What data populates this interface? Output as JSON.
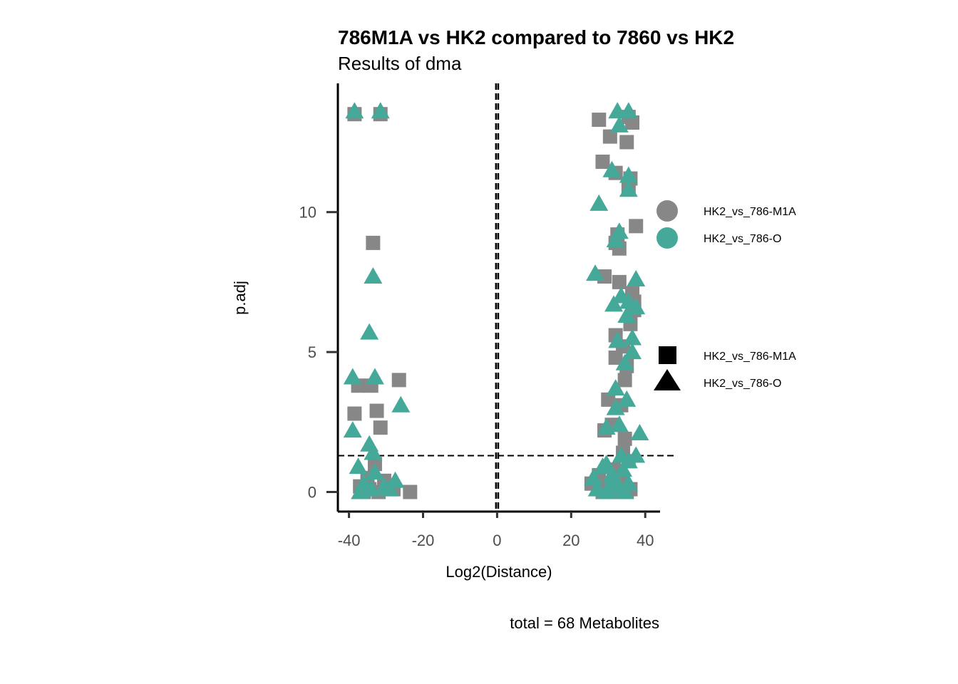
{
  "chart_data": {
    "type": "scatter",
    "title": "786M1A vs HK2 compared to 7860 vs HK2",
    "subtitle": "Results of dma",
    "xlabel": "Log2(Distance)",
    "ylabel": "p.adj",
    "caption": "total = 68 Metabolites",
    "xlim": [
      -43,
      44
    ],
    "ylim": [
      -0.7,
      14.6
    ],
    "x_ticks": [
      -40,
      -20,
      0,
      20,
      40
    ],
    "y_ticks": [
      0,
      5,
      10
    ],
    "x_tick_labels": [
      "-40",
      "-20",
      "0",
      "20",
      "40"
    ],
    "y_tick_labels": [
      "0",
      "5",
      "10"
    ],
    "reference_lines": {
      "vertical": [
        -0.3,
        0.3
      ],
      "horizontal": [
        1.3
      ]
    },
    "colors": {
      "HK2_vs_786-M1A": "#878787",
      "HK2_vs_786-O": "#45A99A"
    },
    "legend_color": {
      "items": [
        {
          "label": "HK2_vs_786-M1A",
          "color": "#878787"
        },
        {
          "label": "HK2_vs_786-O",
          "color": "#45A99A"
        }
      ]
    },
    "legend_shape": {
      "items": [
        {
          "label": "HK2_vs_786-M1A",
          "shape": "square"
        },
        {
          "label": "HK2_vs_786-O",
          "shape": "triangle"
        }
      ]
    },
    "series": [
      {
        "name": "HK2_vs_786-M1A",
        "shape": "square",
        "color": "#878787",
        "points": [
          [
            -38.5,
            13.5
          ],
          [
            -31.5,
            13.5
          ],
          [
            -33.5,
            8.9
          ],
          [
            -37.5,
            3.8
          ],
          [
            -34.0,
            3.8
          ],
          [
            -26.5,
            4.0
          ],
          [
            -38.5,
            2.8
          ],
          [
            -32.5,
            2.9
          ],
          [
            -31.5,
            2.3
          ],
          [
            -33.0,
            1.0
          ],
          [
            -35.0,
            0.5
          ],
          [
            -30.5,
            0.4
          ],
          [
            -37.0,
            0.2
          ],
          [
            -34.5,
            0.1
          ],
          [
            -32.0,
            0.0
          ],
          [
            -28.0,
            0.1
          ],
          [
            -23.5,
            0.0
          ],
          [
            -36.0,
            0.0
          ],
          [
            27.5,
            13.3
          ],
          [
            35.5,
            13.4
          ],
          [
            36.5,
            13.2
          ],
          [
            30.5,
            12.7
          ],
          [
            35.0,
            12.5
          ],
          [
            28.5,
            11.8
          ],
          [
            32.0,
            11.4
          ],
          [
            36.0,
            11.2
          ],
          [
            35.5,
            10.9
          ],
          [
            32.5,
            9.2
          ],
          [
            37.5,
            9.5
          ],
          [
            32.0,
            8.9
          ],
          [
            33.0,
            8.7
          ],
          [
            29.0,
            7.7
          ],
          [
            33.0,
            7.5
          ],
          [
            36.5,
            7.1
          ],
          [
            37.0,
            6.8
          ],
          [
            37.0,
            6.5
          ],
          [
            36.0,
            6.0
          ],
          [
            32.0,
            5.6
          ],
          [
            34.0,
            5.2
          ],
          [
            32.0,
            4.8
          ],
          [
            35.0,
            4.5
          ],
          [
            34.5,
            4.0
          ],
          [
            30.0,
            3.3
          ],
          [
            33.5,
            3.1
          ],
          [
            29.0,
            2.2
          ],
          [
            31.0,
            2.4
          ],
          [
            34.5,
            1.9
          ],
          [
            34.0,
            1.4
          ],
          [
            35.5,
            1.1
          ],
          [
            31.5,
            0.8
          ],
          [
            27.5,
            0.6
          ],
          [
            25.5,
            0.3
          ],
          [
            30.0,
            0.2
          ],
          [
            32.0,
            0.0
          ],
          [
            35.0,
            0.0
          ],
          [
            28.5,
            0.0
          ],
          [
            30.5,
            0.1
          ],
          [
            33.5,
            0.3
          ],
          [
            36.0,
            0.1
          ]
        ]
      },
      {
        "name": "HK2_vs_786-O",
        "shape": "triangle",
        "color": "#45A99A",
        "points": [
          [
            -38.5,
            13.6
          ],
          [
            -31.5,
            13.6
          ],
          [
            -33.5,
            7.7
          ],
          [
            -34.5,
            5.7
          ],
          [
            -39.0,
            4.1
          ],
          [
            -33.0,
            4.1
          ],
          [
            -26.0,
            3.1
          ],
          [
            -39.0,
            2.2
          ],
          [
            -34.5,
            1.7
          ],
          [
            -33.5,
            1.4
          ],
          [
            -37.5,
            0.9
          ],
          [
            -33.0,
            0.7
          ],
          [
            -36.0,
            0.3
          ],
          [
            -34.0,
            0.1
          ],
          [
            -30.5,
            0.2
          ],
          [
            -27.5,
            0.4
          ],
          [
            -29.0,
            0.1
          ],
          [
            -37.0,
            0.0
          ],
          [
            32.5,
            13.6
          ],
          [
            35.5,
            13.6
          ],
          [
            33.0,
            13.1
          ],
          [
            31.0,
            11.5
          ],
          [
            35.5,
            11.3
          ],
          [
            35.5,
            10.8
          ],
          [
            27.5,
            10.3
          ],
          [
            33.0,
            9.3
          ],
          [
            32.0,
            9.0
          ],
          [
            26.5,
            7.8
          ],
          [
            37.5,
            7.6
          ],
          [
            33.5,
            7.0
          ],
          [
            31.5,
            6.7
          ],
          [
            35.5,
            6.8
          ],
          [
            37.5,
            6.6
          ],
          [
            35.0,
            6.3
          ],
          [
            36.5,
            5.5
          ],
          [
            32.5,
            5.4
          ],
          [
            36.5,
            5.0
          ],
          [
            34.5,
            4.6
          ],
          [
            32.0,
            3.7
          ],
          [
            35.0,
            3.3
          ],
          [
            32.0,
            3.0
          ],
          [
            33.0,
            2.4
          ],
          [
            29.5,
            2.3
          ],
          [
            38.5,
            2.1
          ],
          [
            33.5,
            1.3
          ],
          [
            37.5,
            1.3
          ],
          [
            35.5,
            1.1
          ],
          [
            29.5,
            1.0
          ],
          [
            34.0,
            0.8
          ],
          [
            28.5,
            0.9
          ],
          [
            26.0,
            0.5
          ],
          [
            32.0,
            0.4
          ],
          [
            30.5,
            0.2
          ],
          [
            27.0,
            0.1
          ],
          [
            34.5,
            0.0
          ],
          [
            29.5,
            0.0
          ],
          [
            32.0,
            0.1
          ],
          [
            35.5,
            0.3
          ],
          [
            31.0,
            0.6
          ]
        ]
      }
    ]
  }
}
